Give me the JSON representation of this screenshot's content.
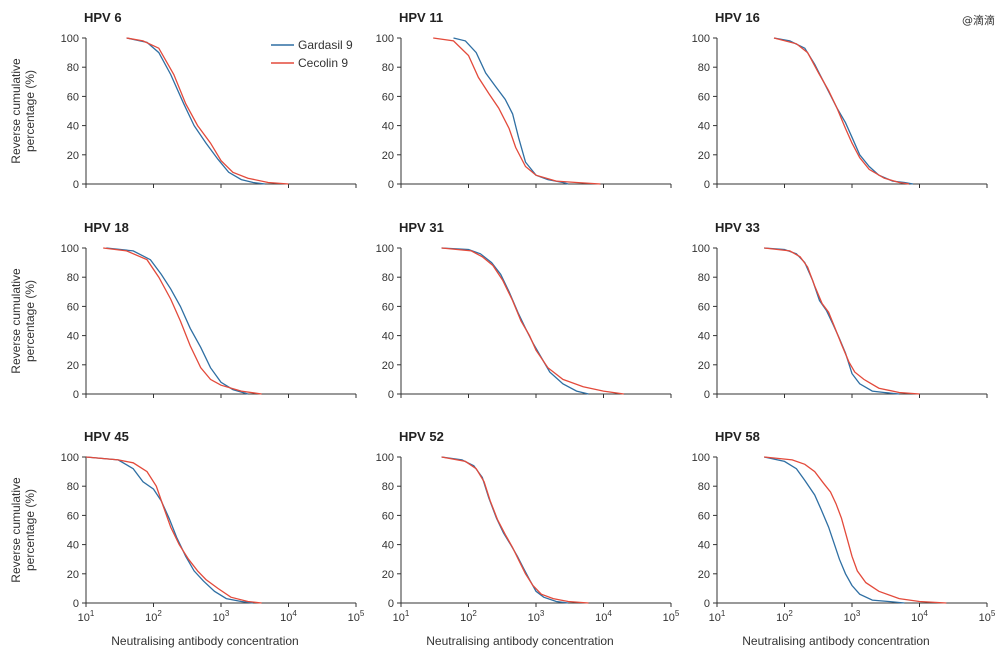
{
  "watermark": "@滴滴",
  "colors": {
    "gardasil": "#2f6fa3",
    "cecolin": "#e34a3b",
    "axis": "#333333"
  },
  "chart_data": {
    "type": "line",
    "x_scale": "log",
    "xlim": [
      10,
      100000
    ],
    "ylim": [
      0,
      100
    ],
    "ylabel_lines": [
      "Reverse cumulative",
      "percentage (%)"
    ],
    "xlabel": "Neutralising antibody concentration",
    "x_tick_labels": [
      {
        "base": "10",
        "exp": "1"
      },
      {
        "base": "10",
        "exp": "2"
      },
      {
        "base": "10",
        "exp": "3"
      },
      {
        "base": "10",
        "exp": "4"
      },
      {
        "base": "10",
        "exp": "5"
      }
    ],
    "x_tick_values": [
      10,
      100,
      1000,
      10000,
      100000
    ],
    "y_ticks": [
      0,
      20,
      40,
      60,
      80,
      100
    ],
    "legend": [
      "Gardasil 9",
      "Cecolin 9"
    ],
    "panels": [
      {
        "title": "HPV 6",
        "series": [
          {
            "name": "Gardasil 9",
            "x": [
              40,
              80,
              120,
              180,
              280,
              400,
              600,
              900,
              1300,
              2000,
              3000,
              4500
            ],
            "y": [
              100,
              97,
              90,
              75,
              55,
              40,
              28,
              17,
              8,
              3,
              1,
              0
            ]
          },
          {
            "name": "Cecolin 9",
            "x": [
              40,
              70,
              120,
              200,
              300,
              450,
              700,
              1000,
              1500,
              2500,
              5000,
              10000
            ],
            "y": [
              100,
              98,
              93,
              75,
              55,
              40,
              28,
              16,
              8,
              4,
              1,
              0
            ]
          }
        ]
      },
      {
        "title": "HPV 11",
        "series": [
          {
            "name": "Gardasil 9",
            "x": [
              60,
              90,
              130,
              180,
              250,
              350,
              450,
              550,
              700,
              1000,
              1500,
              2500,
              3000
            ],
            "y": [
              100,
              98,
              90,
              76,
              67,
              58,
              48,
              32,
              15,
              6,
              3,
              1,
              0
            ]
          },
          {
            "name": "Cecolin 9",
            "x": [
              30,
              60,
              100,
              140,
              200,
              280,
              400,
              500,
              700,
              1000,
              2000,
              4000,
              9000
            ],
            "y": [
              100,
              98,
              88,
              73,
              62,
              52,
              38,
              25,
              12,
              6,
              2,
              1,
              0
            ]
          }
        ]
      },
      {
        "title": "HPV 16",
        "series": [
          {
            "name": "Gardasil 9",
            "x": [
              70,
              120,
              200,
              280,
              400,
              600,
              800,
              1000,
              1300,
              1800,
              2500,
              4000,
              6000,
              8000
            ],
            "y": [
              100,
              98,
              93,
              82,
              68,
              52,
              42,
              32,
              20,
              12,
              6,
              2,
              1,
              0
            ]
          },
          {
            "name": "Cecolin 9",
            "x": [
              70,
              150,
              220,
              320,
              450,
              600,
              800,
              1000,
              1300,
              1800,
              3000,
              5000,
              7000
            ],
            "y": [
              100,
              96,
              90,
              76,
              64,
              52,
              38,
              28,
              18,
              10,
              4,
              1,
              0
            ]
          }
        ]
      },
      {
        "title": "HPV 18",
        "series": [
          {
            "name": "Gardasil 9",
            "x": [
              20,
              50,
              90,
              130,
              180,
              250,
              350,
              500,
              700,
              1000,
              1500,
              2500
            ],
            "y": [
              100,
              98,
              92,
              82,
              72,
              60,
              45,
              32,
              18,
              8,
              3,
              0
            ]
          },
          {
            "name": "Cecolin 9",
            "x": [
              18,
              40,
              80,
              120,
              180,
              250,
              350,
              500,
              700,
              1000,
              2000,
              4000
            ],
            "y": [
              100,
              98,
              92,
              80,
              65,
              50,
              33,
              18,
              10,
              6,
              2,
              0
            ]
          }
        ]
      },
      {
        "title": "HPV 31",
        "series": [
          {
            "name": "Gardasil 9",
            "x": [
              40,
              100,
              150,
              220,
              300,
              400,
              550,
              700,
              900,
              1200,
              1600,
              2500,
              4000,
              6000
            ],
            "y": [
              100,
              99,
              96,
              90,
              82,
              70,
              55,
              45,
              35,
              25,
              15,
              7,
              2,
              0
            ]
          },
          {
            "name": "Cecolin 9",
            "x": [
              40,
              110,
              160,
              230,
              320,
              450,
              600,
              800,
              1000,
              1500,
              2500,
              5000,
              10000,
              20000
            ],
            "y": [
              100,
              98,
              94,
              88,
              78,
              64,
              50,
              40,
              30,
              18,
              10,
              5,
              2,
              0
            ]
          }
        ]
      },
      {
        "title": "HPV 33",
        "series": [
          {
            "name": "Gardasil 9",
            "x": [
              50,
              100,
              150,
              200,
              260,
              330,
              420,
              520,
              650,
              800,
              1000,
              1300,
              2000,
              3000,
              5000
            ],
            "y": [
              100,
              99,
              96,
              90,
              78,
              64,
              57,
              48,
              38,
              28,
              14,
              7,
              2,
              1,
              0
            ]
          },
          {
            "name": "Cecolin 9",
            "x": [
              50,
              120,
              170,
              220,
              280,
              360,
              450,
              550,
              700,
              900,
              1100,
              1500,
              2500,
              5000,
              10000
            ],
            "y": [
              100,
              98,
              94,
              87,
              74,
              62,
              56,
              46,
              34,
              22,
              15,
              10,
              4,
              1,
              0
            ]
          }
        ]
      },
      {
        "title": "HPV 45",
        "series": [
          {
            "name": "Gardasil 9",
            "x": [
              10,
              30,
              50,
              70,
              100,
              130,
              170,
              220,
              300,
              400,
              550,
              800,
              1200,
              2000,
              3000
            ],
            "y": [
              100,
              98,
              92,
              83,
              78,
              70,
              58,
              45,
              32,
              22,
              15,
              8,
              3,
              1,
              0
            ]
          },
          {
            "name": "Cecolin 9",
            "x": [
              10,
              30,
              50,
              80,
              110,
              140,
              180,
              240,
              330,
              450,
              600,
              900,
              1400,
              2500,
              4000
            ],
            "y": [
              100,
              98,
              96,
              90,
              80,
              66,
              52,
              40,
              30,
              22,
              16,
              10,
              4,
              1,
              0
            ]
          }
        ]
      },
      {
        "title": "HPV 52",
        "series": [
          {
            "name": "Gardasil 9",
            "x": [
              40,
              80,
              120,
              160,
              200,
              260,
              330,
              420,
              530,
              650,
              800,
              1000,
              1300,
              2000,
              3000
            ],
            "y": [
              100,
              98,
              94,
              86,
              72,
              58,
              48,
              40,
              32,
              24,
              16,
              8,
              4,
              1,
              0
            ]
          },
          {
            "name": "Cecolin 9",
            "x": [
              40,
              90,
              130,
              170,
              210,
              270,
              350,
              450,
              560,
              700,
              900,
              1200,
              1800,
              3000,
              6000
            ],
            "y": [
              100,
              97,
              92,
              83,
              70,
              57,
              47,
              38,
              29,
              20,
              12,
              6,
              3,
              1,
              0
            ]
          }
        ]
      },
      {
        "title": "HPV 58",
        "series": [
          {
            "name": "Gardasil 9",
            "x": [
              50,
              100,
              150,
              200,
              280,
              350,
              450,
              550,
              650,
              800,
              1000,
              1300,
              2000,
              3500,
              6000
            ],
            "y": [
              100,
              97,
              92,
              84,
              74,
              64,
              52,
              40,
              30,
              20,
              12,
              6,
              2,
              1,
              0
            ]
          },
          {
            "name": "Cecolin 9",
            "x": [
              50,
              130,
              200,
              280,
              380,
              480,
              580,
              700,
              850,
              1000,
              1200,
              1600,
              2500,
              5000,
              10000,
              25000
            ],
            "y": [
              100,
              98,
              95,
              90,
              82,
              76,
              68,
              58,
              44,
              32,
              22,
              14,
              8,
              3,
              1,
              0
            ]
          }
        ]
      }
    ]
  }
}
